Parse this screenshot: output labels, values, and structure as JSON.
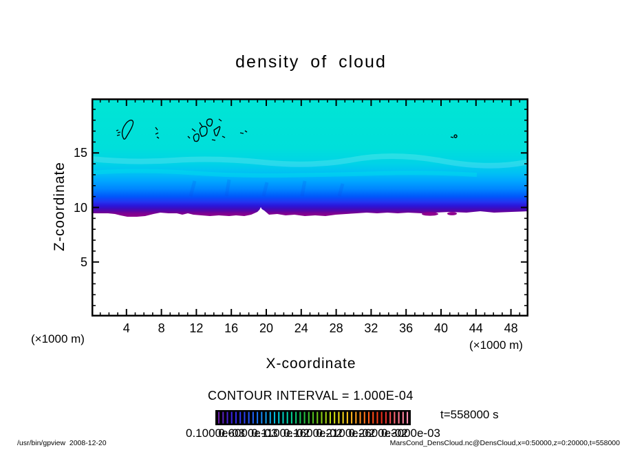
{
  "title": "density of cloud",
  "notes": {
    "contour_interval": "CONTOUR INTERVAL = 1.000E-04",
    "time": "t=558000 s"
  },
  "axes": {
    "x": {
      "label": "X-coordinate",
      "unit_left": "(×1000 m)",
      "unit_right": "(×1000 m)",
      "tick_labels": [
        4,
        8,
        12,
        16,
        20,
        24,
        28,
        32,
        36,
        40,
        44,
        48
      ]
    },
    "y": {
      "label": "Z-coordinate",
      "tick_labels": [
        15,
        10,
        5
      ]
    }
  },
  "footer": {
    "left": "/usr/bin/gpview  2008-12-20",
    "right": "MarsCond_DensCloud.nc@DensCloud,x=0:50000,z=0:20000,t=558000"
  },
  "chart_data": {
    "type": "heatmap",
    "title": "density of cloud",
    "xlabel": "X-coordinate",
    "ylabel": "Z-coordinate",
    "x_unit": "(×1000 m)",
    "z_unit": "(×1000 m)",
    "xlim": [
      0,
      50
    ],
    "ylim": [
      0,
      20
    ],
    "x_major_ticks": [
      4,
      8,
      12,
      16,
      20,
      24,
      28,
      32,
      36,
      40,
      44,
      48
    ],
    "x_minor_tick_step": 1,
    "y_major_ticks": [
      5,
      10,
      15
    ],
    "y_minor_tick_step": 1,
    "grid": false,
    "contour_interval": "1.000E-04",
    "time": "t=558000 s",
    "field_summary": [
      {
        "z_range": [
          13.5,
          20
        ],
        "density": "~1e-4, near-uniform (cyan)"
      },
      {
        "z_range": [
          11.5,
          13.5
        ],
        "density": "~3e-4 to 1e-3, gradient (light blue)"
      },
      {
        "z_range": [
          10.2,
          11.5
        ],
        "density": "~1e-3 to 2e-3 (deep blue)"
      },
      {
        "z_range": [
          9.5,
          10.2
        ],
        "density": "maximum ~2.5e-3 to 3e-3 (purple band, wavy lower edge)"
      },
      {
        "z_range": [
          0,
          9.5
        ],
        "density": "0 — no cloud (white)"
      }
    ],
    "contour_lines": "sparse weak closed contours near z≈16–18 at x≈3–7, 9, 11–16, 18 and 41 (×1000 m)",
    "field_gradient": [
      {
        "offset": 0.0,
        "color": "#00E5D5"
      },
      {
        "offset": 0.42,
        "color": "#00DFDA"
      },
      {
        "offset": 0.55,
        "color": "#00D3E7"
      },
      {
        "offset": 0.63,
        "color": "#00C1F4"
      },
      {
        "offset": 0.7,
        "color": "#00A5FF"
      },
      {
        "offset": 0.77,
        "color": "#0083FF"
      },
      {
        "offset": 0.83,
        "color": "#0057FB"
      },
      {
        "offset": 0.875,
        "color": "#2334F0"
      },
      {
        "offset": 0.905,
        "color": "#2A17DB"
      },
      {
        "offset": 0.93,
        "color": "#3D0CBF"
      },
      {
        "offset": 0.952,
        "color": "#5B05A4"
      },
      {
        "offset": 0.972,
        "color": "#7D0291"
      },
      {
        "offset": 1.0,
        "color": "#8E008E"
      }
    ],
    "colorbar": {
      "labels": [
        "0.1000e-03",
        "0.6000e-03",
        "0.1100e-02",
        "0.1600e-02",
        "0.2100e-02",
        "0.2600e-02",
        "0.3000e-03"
      ],
      "labels_overlap": true,
      "stripe_count": 45,
      "background": "#000000",
      "gradient_stops": [
        "#6A1FA8",
        "#3C22E0",
        "#2B3BF0",
        "#1E64F5",
        "#0F9BEB",
        "#00C8D8",
        "#00D3A0",
        "#16C24F",
        "#52BE1E",
        "#9ED411",
        "#E3E312",
        "#FFC31E",
        "#FF8A1C",
        "#FF4F17",
        "#E6281C",
        "#FF6E7E",
        "#FF8FB0"
      ]
    }
  }
}
